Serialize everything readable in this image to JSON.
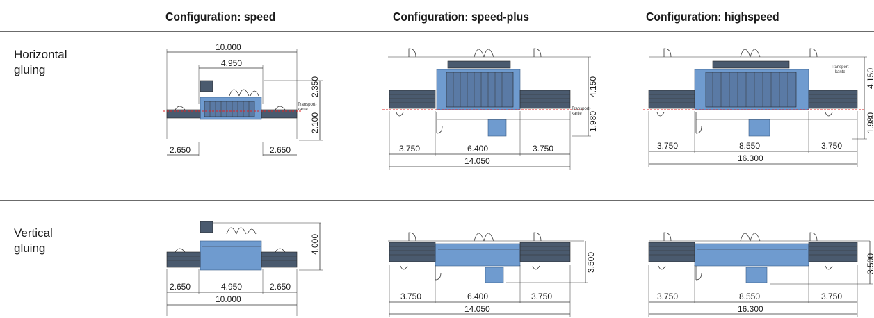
{
  "columns": {
    "speed": "Configuration: speed",
    "speed_plus": "Configuration: speed-plus",
    "highspeed": "Configuration: highspeed"
  },
  "rows": {
    "horizontal": "Horizontal\ngluing",
    "vertical": "Vertical\ngluing"
  },
  "transport_label": "Transport-\nkante",
  "dims": {
    "h_speed": {
      "total": "10.000",
      "middle": "4.950",
      "left": "2.650",
      "right": "2.650",
      "height_top": "2.350",
      "height_bottom": "2.100"
    },
    "h_speed_plus": {
      "left": "3.750",
      "middle": "6.400",
      "right": "3.750",
      "total": "14.050",
      "height_top": "4.150",
      "height_bottom": "1.980"
    },
    "h_highspeed": {
      "left": "3.750",
      "middle": "8.550",
      "right": "3.750",
      "total": "16.300",
      "height_top": "4.150",
      "height_bottom": "1.980"
    },
    "v_speed": {
      "left": "2.650",
      "middle": "4.950",
      "right": "2.650",
      "total": "10.000",
      "height": "4.000"
    },
    "v_speed_plus": {
      "left": "3.750",
      "middle": "6.400",
      "right": "3.750",
      "total": "14.050",
      "height": "3.500"
    },
    "v_highspeed": {
      "left": "3.750",
      "middle": "8.550",
      "right": "3.750",
      "total": "16.300",
      "height": "3.500"
    }
  },
  "colors": {
    "machine": "#6f9bcf",
    "transport_line": "#dd2222"
  }
}
